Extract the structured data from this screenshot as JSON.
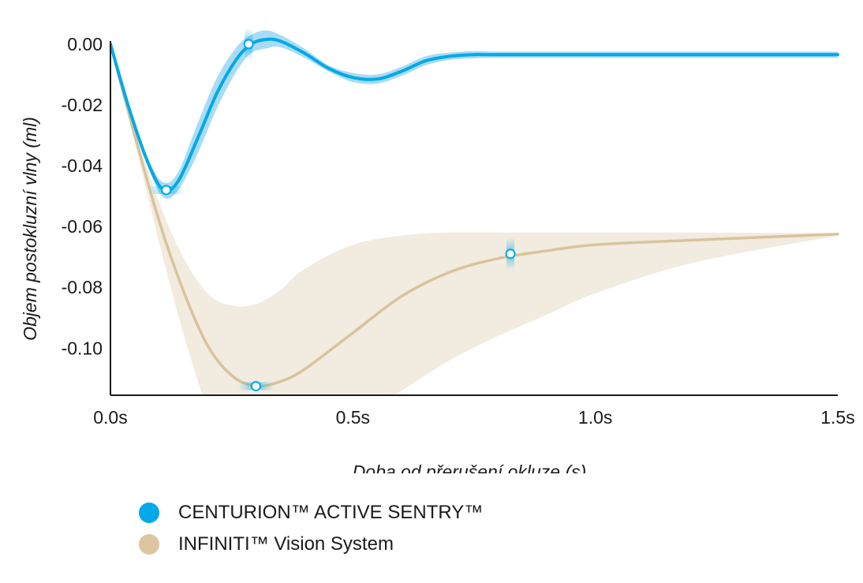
{
  "chart_data": {
    "type": "line",
    "xlabel": "Doba od přerušení okluze (s)",
    "ylabel": "Objem postokluzní vlny (ml)",
    "xlim": [
      0,
      1.5
    ],
    "ylim": [
      -0.1155,
      0.001
    ],
    "x_ticks": [
      {
        "value": 0,
        "label": "0.0s"
      },
      {
        "value": 0.5,
        "label": "0.5s"
      },
      {
        "value": 1.0,
        "label": "1.0s"
      },
      {
        "value": 1.5,
        "label": "1.5s"
      }
    ],
    "y_ticks": [
      {
        "value": 0,
        "label": "0.00"
      },
      {
        "value": -0.02,
        "label": "-0.02"
      },
      {
        "value": -0.04,
        "label": "-0.04"
      },
      {
        "value": -0.06,
        "label": "-0.06"
      },
      {
        "value": -0.08,
        "label": "-0.08"
      },
      {
        "value": -0.1,
        "label": "-0.10"
      }
    ],
    "grid": false,
    "legend_position": "bottom-left",
    "series": [
      {
        "name": "CENTURION™ ACTIVE SENTRY™",
        "color": "#00a9e8",
        "band_color": "#a9dcf4",
        "x": [
          0,
          0.04,
          0.08,
          0.11,
          0.14,
          0.18,
          0.22,
          0.26,
          0.29,
          0.32,
          0.35,
          0.4,
          0.45,
          0.5,
          0.55,
          0.6,
          0.65,
          0.7,
          0.75,
          0.8,
          1.0,
          1.2,
          1.5
        ],
        "y": [
          0,
          -0.022,
          -0.04,
          -0.048,
          -0.045,
          -0.031,
          -0.016,
          -0.005,
          0.0,
          0.0015,
          0.001,
          -0.003,
          -0.008,
          -0.011,
          -0.0115,
          -0.009,
          -0.0055,
          -0.004,
          -0.0035,
          -0.0035,
          -0.0035,
          -0.0035,
          -0.0035
        ],
        "band_half_width": [
          0,
          0.001,
          0.0015,
          0.0025,
          0.003,
          0.005,
          0.005,
          0.004,
          0.003,
          0.003,
          0.002,
          0.0015,
          0.001,
          0.0015,
          0.0015,
          0.0015,
          0.0015,
          0.0012,
          0.0012,
          0.001,
          0.001,
          0.001,
          0.001
        ],
        "markers": [
          {
            "x": 0.115,
            "y": -0.048
          },
          {
            "x": 0.285,
            "y": 0.0
          }
        ]
      },
      {
        "name": "INFINITI™ Vision System",
        "color": "#d9c39c",
        "band_color": "#f1ebe0",
        "x": [
          0,
          0.05,
          0.1,
          0.15,
          0.2,
          0.25,
          0.3,
          0.35,
          0.4,
          0.5,
          0.6,
          0.7,
          0.8,
          0.9,
          1.0,
          1.2,
          1.5
        ],
        "y": [
          0,
          -0.03,
          -0.058,
          -0.081,
          -0.099,
          -0.109,
          -0.1125,
          -0.111,
          -0.107,
          -0.095,
          -0.083,
          -0.075,
          -0.0705,
          -0.068,
          -0.066,
          -0.0645,
          -0.0625
        ],
        "band_upper": [
          0,
          -0.028,
          -0.052,
          -0.07,
          -0.082,
          -0.086,
          -0.0855,
          -0.081,
          -0.074,
          -0.066,
          -0.063,
          -0.062,
          -0.062,
          -0.062,
          -0.062,
          -0.062,
          -0.0622
        ],
        "band_lower": [
          0,
          -0.032,
          -0.065,
          -0.095,
          -0.12,
          -0.14,
          -0.145,
          -0.14,
          -0.132,
          -0.124,
          -0.114,
          -0.104,
          -0.096,
          -0.089,
          -0.082,
          -0.072,
          -0.063
        ],
        "markers": [
          {
            "x": 0.3,
            "y": -0.1125
          },
          {
            "x": 0.825,
            "y": -0.069
          }
        ]
      }
    ]
  }
}
